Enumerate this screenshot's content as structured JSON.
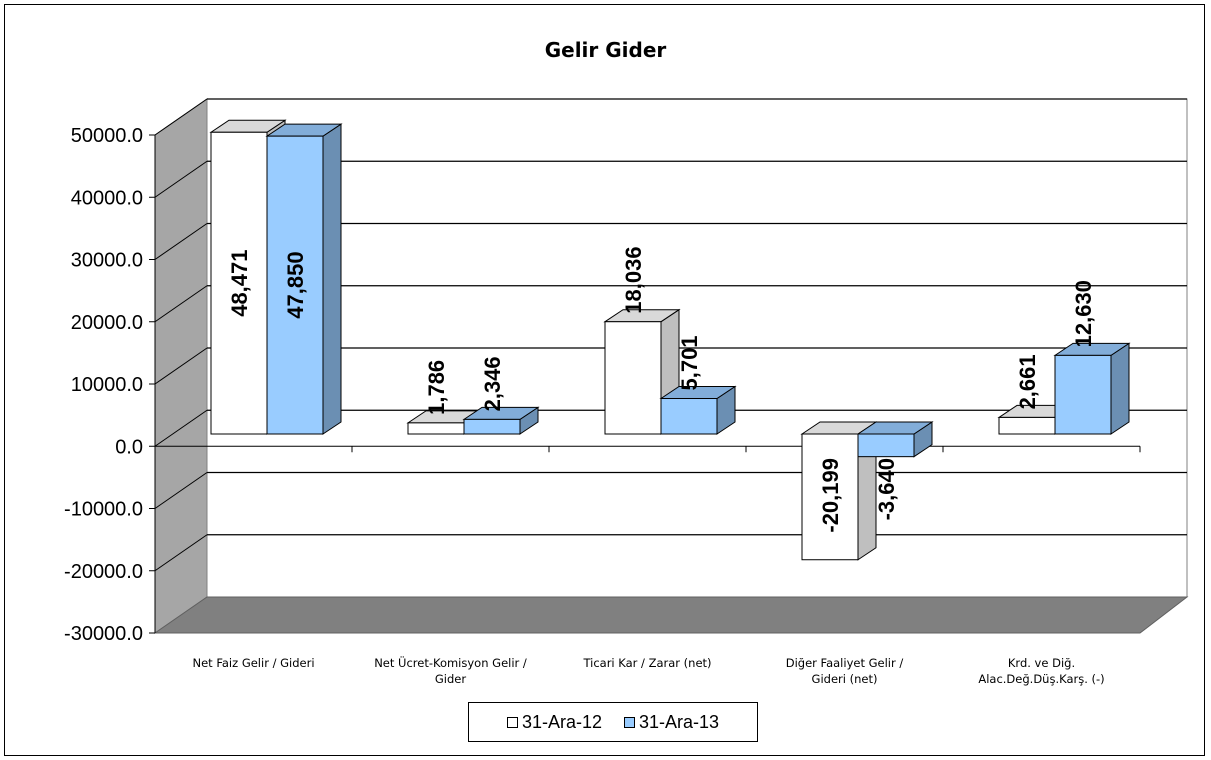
{
  "chart_data": {
    "type": "bar",
    "title": "Gelir Gider",
    "xlabel": "",
    "ylabel": "",
    "ylim": [
      -30000,
      50000
    ],
    "yticks": [
      "-30000.0",
      "-20000.0",
      "-10000.0",
      "0.0",
      "10000.0",
      "20000.0",
      "30000.0",
      "40000.0",
      "50000.0"
    ],
    "ytick_values": [
      -30000,
      -20000,
      -10000,
      0,
      10000,
      20000,
      30000,
      40000,
      50000
    ],
    "categories": [
      [
        "Net Faiz Gelir / Gideri"
      ],
      [
        "Net Ücret-Komisyon Gelir /",
        "Gider"
      ],
      [
        "Ticari Kar / Zarar (net)"
      ],
      [
        "Diğer Faaliyet Gelir /",
        "Gideri (net)"
      ],
      [
        "Krd. ve Diğ.",
        "Alac.Değ.Düş.Karş. (-)"
      ]
    ],
    "series": [
      {
        "name": "31-Ara-12",
        "values": [
          48471,
          1786,
          18036,
          -20199,
          2661
        ],
        "labels": [
          "48,471",
          "1,786",
          "18,036",
          "-20,199",
          "2,661"
        ],
        "color": "#ffffff"
      },
      {
        "name": "31-Ara-13",
        "values": [
          47850,
          2346,
          5701,
          -3640,
          12630
        ],
        "labels": [
          "47,850",
          "2,346",
          "5,701",
          "-3,640",
          "12,630"
        ],
        "color": "#99ccff"
      }
    ],
    "grid": true,
    "legend": "bottom",
    "style": "3d-clustered-bar"
  }
}
